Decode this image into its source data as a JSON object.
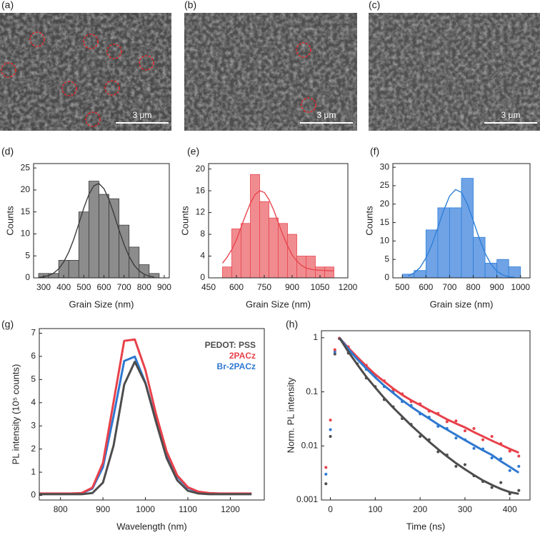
{
  "images": [
    {
      "label": "(a)",
      "scale_bar": "3 μm"
    },
    {
      "label": "(b)",
      "scale_bar": "3 μm"
    },
    {
      "label": "(c)",
      "scale_bar": "3 μm"
    }
  ],
  "chart_data": [
    {
      "type": "histogram",
      "panel_label": "(d)",
      "xlabel": "Grain Size (nm)",
      "ylabel": "Counts",
      "bins": [
        275,
        325,
        375,
        425,
        475,
        525,
        575,
        625,
        675,
        725,
        775,
        825,
        875
      ],
      "values": [
        1,
        1,
        4,
        4,
        15,
        22,
        19,
        18,
        12,
        7,
        3,
        1
      ],
      "fit_x": [
        275,
        300,
        325,
        350,
        375,
        400,
        425,
        450,
        475,
        500,
        525,
        550,
        575,
        600,
        625,
        650,
        675,
        700,
        725,
        750,
        775,
        800,
        825,
        850
      ],
      "fit_values": [
        0.1,
        0.24,
        0.53,
        1.08,
        2.05,
        3.62,
        5.86,
        8.8,
        12.3,
        15.9,
        18.97,
        20.97,
        21.47,
        20.3,
        17.8,
        14.5,
        10.9,
        7.6,
        4.9,
        2.9,
        1.6,
        0.82,
        0.39,
        0.17
      ],
      "color": "#8c8c8c",
      "line_color": "#3c3c3c",
      "xlim": [
        250,
        925
      ],
      "xticks": [
        300,
        400,
        500,
        600,
        700,
        800,
        900
      ],
      "ylim": [
        0,
        26
      ],
      "yticks": [
        0,
        5,
        10,
        15,
        20,
        25
      ]
    },
    {
      "type": "histogram",
      "panel_label": "(e)",
      "xlabel": "Grain Size (nm)",
      "ylabel": "Counts",
      "bins": [
        525,
        575,
        625,
        675,
        725,
        775,
        825,
        875,
        925,
        975,
        1025,
        1075,
        1125
      ],
      "values": [
        2,
        9,
        10,
        19,
        14,
        11,
        10,
        8,
        4,
        4,
        2,
        2
      ],
      "fit_x": [
        525,
        550,
        575,
        600,
        625,
        650,
        675,
        700,
        725,
        750,
        775,
        800,
        825,
        850,
        875,
        900,
        925,
        950,
        975,
        1000,
        1025,
        1050,
        1075,
        1100,
        1125
      ],
      "fit_values": [
        2.7,
        3.8,
        5.2,
        7.0,
        9.3,
        11.6,
        13.7,
        15.3,
        16.0,
        15.7,
        14.4,
        12.5,
        10.2,
        7.9,
        5.9,
        4.2,
        3.1,
        2.3,
        1.8,
        1.6,
        1.45,
        1.4,
        1.35,
        1.3,
        1.3
      ],
      "color": "#f08c90",
      "line_color": "#e8464f",
      "xlim": [
        450,
        1200
      ],
      "xticks": [
        450,
        600,
        750,
        900,
        1050,
        1200
      ],
      "ylim": [
        0,
        21
      ],
      "yticks": [
        0,
        4,
        8,
        12,
        16,
        20
      ]
    },
    {
      "type": "histogram",
      "panel_label": "(f)",
      "xlabel": "Grain size (nm)",
      "ylabel": "Counts",
      "bins": [
        500,
        550,
        600,
        650,
        700,
        750,
        800,
        850,
        900,
        950,
        1000
      ],
      "values": [
        1,
        2,
        13,
        19,
        19,
        27,
        11,
        4,
        5,
        3
      ],
      "fit_x": [
        525,
        550,
        575,
        600,
        625,
        650,
        675,
        700,
        725,
        750,
        775,
        800,
        825,
        850,
        875,
        900,
        925,
        950,
        975
      ],
      "fit_values": [
        0.57,
        1.35,
        2.8,
        5.4,
        9.0,
        13.6,
        18.3,
        22.2,
        23.95,
        23.2,
        20,
        15.5,
        10.8,
        6.7,
        3.7,
        1.8,
        0.8,
        0.33,
        0.12
      ],
      "color": "#6fa3e6",
      "line_color": "#2f7fd8",
      "xlim": [
        460,
        1040
      ],
      "xticks": [
        500,
        600,
        700,
        800,
        900,
        1000
      ],
      "ylim": [
        0,
        31
      ],
      "yticks": [
        0,
        5,
        10,
        15,
        20,
        25,
        30
      ]
    },
    {
      "type": "line",
      "panel_label": "(g)",
      "xlabel": "Wavelength (nm)",
      "ylabel": "PL intensity (10⁵ counts)",
      "x": [
        750,
        775,
        800,
        825,
        850,
        875,
        900,
        925,
        950,
        975,
        1000,
        1025,
        1050,
        1075,
        1100,
        1125,
        1150,
        1175,
        1200,
        1225,
        1250
      ],
      "series": [
        {
          "name": "PEDOT: PSS",
          "color": "#4d4d4d",
          "values": [
            0.05,
            0.05,
            0.05,
            0.05,
            0.05,
            0.1,
            0.55,
            2.15,
            4.78,
            5.77,
            4.84,
            3.17,
            1.61,
            0.65,
            0.2,
            0.08,
            0.05,
            0.05,
            0.05,
            0.05,
            0.05
          ]
        },
        {
          "name": "2PACz",
          "color": "#e8414a",
          "values": [
            0.08,
            0.08,
            0.08,
            0.08,
            0.1,
            0.33,
            1.41,
            4.03,
            6.67,
            6.73,
            5.41,
            3.51,
            1.89,
            0.86,
            0.35,
            0.16,
            0.1,
            0.08,
            0.08,
            0.08,
            0.08
          ]
        },
        {
          "name": "Br-2PACz",
          "color": "#2f78d0",
          "values": [
            0.06,
            0.06,
            0.06,
            0.06,
            0.09,
            0.29,
            1.22,
            3.43,
            5.8,
            5.99,
            4.86,
            3.22,
            1.76,
            0.81,
            0.32,
            0.14,
            0.08,
            0.06,
            0.06,
            0.06,
            0.06
          ]
        }
      ],
      "legend": "upper right",
      "xlim": [
        750,
        1280
      ],
      "xticks": [
        800,
        900,
        1000,
        1100,
        1200
      ],
      "ylim": [
        -0.2,
        7.2
      ],
      "yticks": [
        0,
        1,
        2,
        3,
        4,
        5,
        6,
        7
      ]
    },
    {
      "type": "scatter",
      "panel_label": "(h)",
      "xlabel": "Time (ns)",
      "ylabel": "Norm. PL intensity",
      "log_y": true,
      "x": [
        -10,
        0,
        10,
        20,
        40,
        60,
        80,
        100,
        120,
        140,
        160,
        180,
        200,
        220,
        240,
        260,
        280,
        300,
        320,
        340,
        360,
        380,
        400,
        420
      ],
      "series": [
        {
          "color": "#e8414a",
          "values": [
            0.004,
            0.03,
            0.6,
            0.98,
            0.68,
            0.42,
            0.31,
            0.2,
            0.16,
            0.11,
            0.092,
            0.066,
            0.06,
            0.044,
            0.04,
            0.028,
            0.029,
            0.019,
            0.021,
            0.013,
            0.015,
            0.011,
            0.008,
            0.0065
          ]
        },
        {
          "color": "#2f78d0",
          "values": [
            0.003,
            0.02,
            0.55,
            0.97,
            0.6,
            0.41,
            0.26,
            0.19,
            0.125,
            0.1,
            0.066,
            0.056,
            0.039,
            0.034,
            0.023,
            0.021,
            0.014,
            0.013,
            0.009,
            0.0088,
            0.006,
            0.0058,
            0.0035,
            0.0042
          ]
        },
        {
          "color": "#4d4d4d",
          "values": [
            0.002,
            0.015,
            0.5,
            0.96,
            0.52,
            0.33,
            0.18,
            0.125,
            0.072,
            0.053,
            0.032,
            0.025,
            0.015,
            0.013,
            0.0078,
            0.0068,
            0.0042,
            0.0045,
            0.0028,
            0.0022,
            0.0017,
            0.0021,
            0.0013,
            0.0015
          ]
        }
      ],
      "fit_x": [
        20,
        40,
        60,
        80,
        100,
        120,
        140,
        160,
        180,
        200,
        220,
        240,
        260,
        280,
        300,
        320,
        340,
        360,
        380,
        400,
        420
      ],
      "fits": [
        {
          "color": "#e8414a",
          "values": [
            1,
            0.65,
            0.44,
            0.3,
            0.21,
            0.155,
            0.115,
            0.088,
            0.07,
            0.057,
            0.046,
            0.038,
            0.031,
            0.026,
            0.022,
            0.018,
            0.015,
            0.0125,
            0.0105,
            0.0088,
            0.0075
          ]
        },
        {
          "color": "#2f78d0",
          "values": [
            1,
            0.62,
            0.4,
            0.27,
            0.185,
            0.13,
            0.095,
            0.07,
            0.053,
            0.041,
            0.032,
            0.025,
            0.02,
            0.016,
            0.0128,
            0.0103,
            0.0083,
            0.0068,
            0.0052,
            0.0041,
            0.0032
          ]
        },
        {
          "color": "#4d4d4d",
          "values": [
            1,
            0.55,
            0.32,
            0.19,
            0.12,
            0.077,
            0.051,
            0.035,
            0.024,
            0.017,
            0.012,
            0.0087,
            0.0064,
            0.0048,
            0.0037,
            0.0029,
            0.0023,
            0.0019,
            0.0016,
            0.0014,
            0.0013
          ]
        }
      ],
      "xlim": [
        -20,
        445
      ],
      "xticks": [
        0,
        100,
        200,
        300,
        400
      ],
      "ylim": [
        0.001,
        1.35
      ],
      "yticks": [
        0.001,
        0.01,
        0.1,
        1
      ]
    }
  ]
}
